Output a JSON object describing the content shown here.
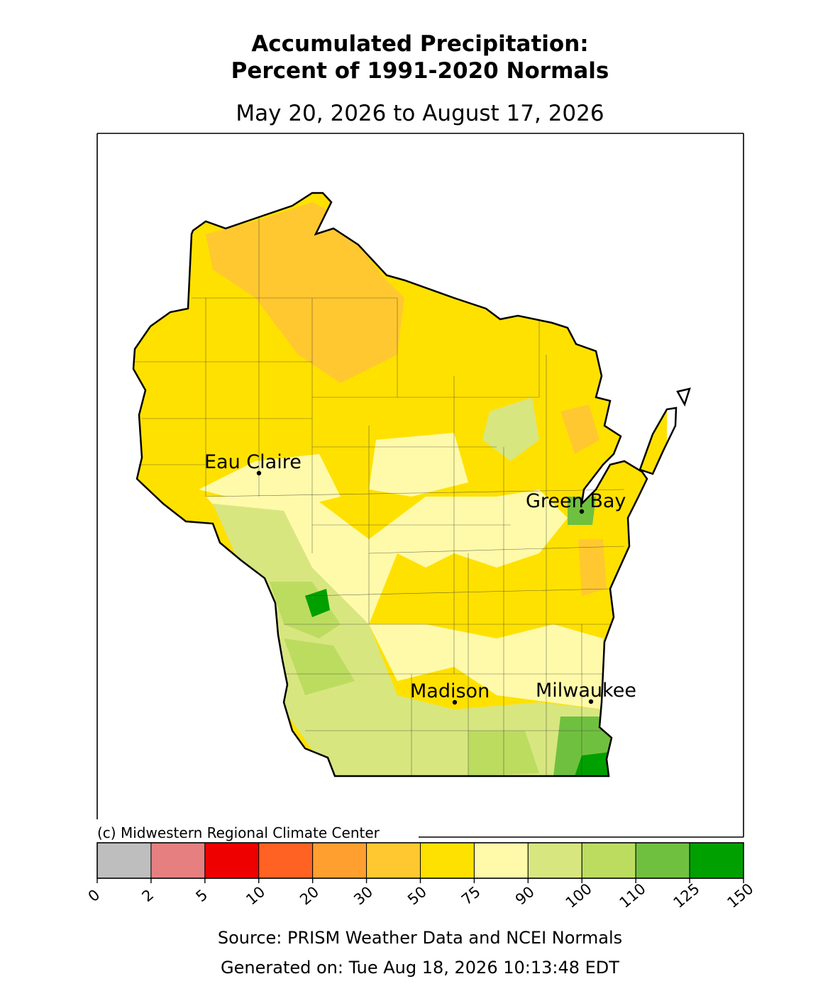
{
  "title": [
    "Accumulated Precipitation:",
    "Percent of 1991-2020 Normals"
  ],
  "subtitle": "May 20, 2026 to August 17, 2026",
  "cities": [
    "Eau Claire",
    "Green Bay",
    "Madison",
    "Milwaukee"
  ],
  "credit": "(c) Midwestern Regional Climate Center",
  "colorbar": {
    "bounds": [
      0,
      2,
      5,
      10,
      20,
      30,
      50,
      75,
      90,
      100,
      110,
      125,
      150
    ],
    "colors": [
      "#bebebe",
      "#e68080",
      "#ee0000",
      "#ff6222",
      "#ff9f30",
      "#ffc830",
      "#ffe100",
      "#fffaaa",
      "#d8e680",
      "#bcdc60",
      "#70c040",
      "#00a000"
    ]
  },
  "source": "Source: PRISM Weather Data and NCEI Normals",
  "generated": "Generated on: Tue Aug 18, 2026 10:13:48 EDT"
}
